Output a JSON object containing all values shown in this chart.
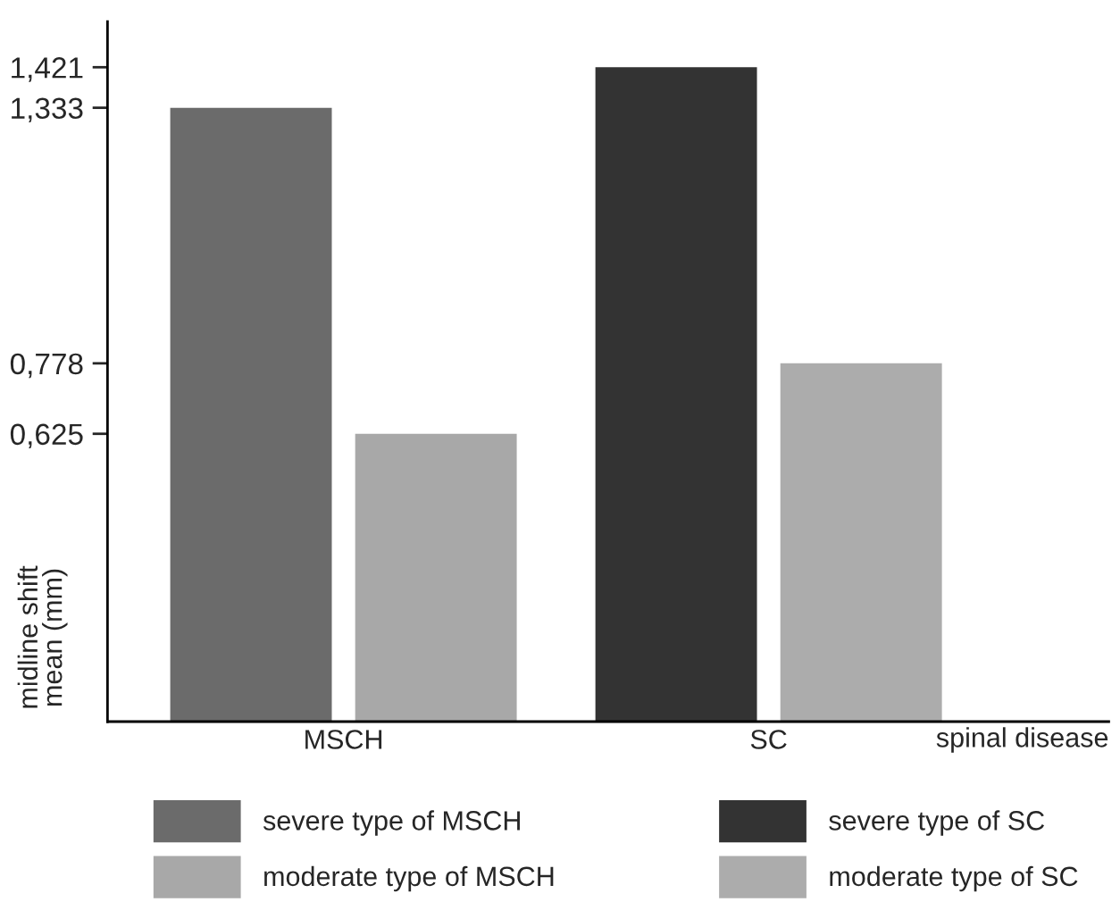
{
  "chart_data": {
    "type": "bar",
    "categories": [
      "MSCH",
      "SC"
    ],
    "xlabel": "spinal disease",
    "ylabel": "midline shift\nmean (mm)",
    "series": [
      {
        "name": "severe type of MSCH",
        "color": "#6b6b6b",
        "values": [
          1.333,
          null
        ]
      },
      {
        "name": "moderate type of MSCH",
        "color": "#a8a8a8",
        "values": [
          0.625,
          null
        ]
      },
      {
        "name": "severe type of SC",
        "color": "#333333",
        "values": [
          null,
          1.421
        ]
      },
      {
        "name": "moderate type of SC",
        "color": "#acacac",
        "values": [
          null,
          0.778
        ]
      }
    ],
    "ylim": [
      0,
      1.52
    ],
    "yticks": [
      {
        "value": 0.625,
        "label": "0,625"
      },
      {
        "value": 0.778,
        "label": "0,778"
      },
      {
        "value": 1.333,
        "label": "1,333"
      },
      {
        "value": 1.421,
        "label": "1,421"
      }
    ],
    "legend": "bottom",
    "grid": false
  }
}
